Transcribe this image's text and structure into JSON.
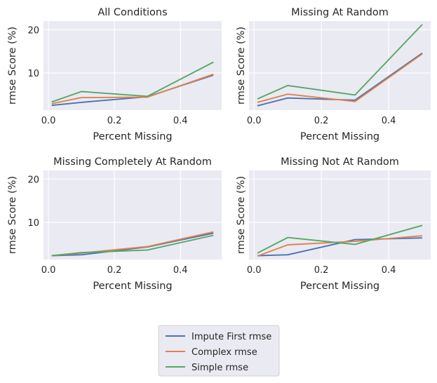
{
  "chart_data": [
    {
      "type": "line",
      "title": "All Conditions",
      "xlabel": "Percent Missing",
      "ylabel": "rmse Score (%)",
      "x": [
        0.01,
        0.1,
        0.3,
        0.5
      ],
      "xlim": [
        -0.015,
        0.525
      ],
      "ylim": [
        1.4,
        22.0
      ],
      "xticks": [
        "0.0",
        "0.2",
        "0.4"
      ],
      "yticks": [
        "10",
        "20"
      ],
      "series": [
        {
          "name": "Impute First rmse",
          "values": [
            2.5,
            3.2,
            4.5,
            9.5
          ]
        },
        {
          "name": "Complex rmse",
          "values": [
            2.9,
            4.3,
            4.4,
            9.7
          ]
        },
        {
          "name": "Simple rmse",
          "values": [
            3.3,
            5.7,
            4.6,
            12.5
          ]
        }
      ]
    },
    {
      "type": "line",
      "title": "Missing At Random",
      "xlabel": "Percent Missing",
      "ylabel": "rmse Score (%)",
      "x": [
        0.01,
        0.1,
        0.3,
        0.5
      ],
      "xlim": [
        -0.015,
        0.525
      ],
      "ylim": [
        1.4,
        22.0
      ],
      "xticks": [
        "0.0",
        "0.2",
        "0.4"
      ],
      "yticks": [
        "",
        ""
      ],
      "series": [
        {
          "name": "Impute First rmse",
          "values": [
            2.4,
            4.2,
            3.7,
            14.6
          ]
        },
        {
          "name": "Complex rmse",
          "values": [
            3.2,
            5.1,
            3.4,
            14.4
          ]
        },
        {
          "name": "Simple rmse",
          "values": [
            4.0,
            7.1,
            4.9,
            21.2
          ]
        }
      ]
    },
    {
      "type": "line",
      "title": "Missing Completely At Random",
      "xlabel": "Percent Missing",
      "ylabel": "rmse Score (%)",
      "x": [
        0.01,
        0.1,
        0.3,
        0.5
      ],
      "xlim": [
        -0.015,
        0.525
      ],
      "ylim": [
        1.4,
        22.0
      ],
      "xticks": [
        "0.0",
        "0.2",
        "0.4"
      ],
      "yticks": [
        "10",
        "20"
      ],
      "series": [
        {
          "name": "Impute First rmse",
          "values": [
            2.3,
            2.5,
            4.3,
            7.5
          ]
        },
        {
          "name": "Complex rmse",
          "values": [
            2.3,
            2.9,
            4.4,
            7.8
          ]
        },
        {
          "name": "Simple rmse",
          "values": [
            2.3,
            3.0,
            3.6,
            7.0
          ]
        }
      ]
    },
    {
      "type": "line",
      "title": "Missing Not At Random",
      "xlabel": "Percent Missing",
      "ylabel": "rmse Score (%)",
      "x": [
        0.01,
        0.1,
        0.3,
        0.5
      ],
      "xlim": [
        -0.015,
        0.525
      ],
      "ylim": [
        1.4,
        22.0
      ],
      "xticks": [
        "0.0",
        "0.2",
        "0.4"
      ],
      "yticks": [
        "",
        ""
      ],
      "series": [
        {
          "name": "Impute First rmse",
          "values": [
            2.3,
            2.5,
            6.0,
            6.4
          ]
        },
        {
          "name": "Complex rmse",
          "values": [
            2.2,
            4.8,
            5.6,
            6.9
          ]
        },
        {
          "name": "Simple rmse",
          "values": [
            2.9,
            6.5,
            4.9,
            9.3
          ]
        }
      ]
    }
  ],
  "legend": {
    "placement": "bottom-center",
    "items": [
      "Impute First rmse",
      "Complex rmse",
      "Simple rmse"
    ]
  },
  "colors": {
    "Impute First rmse": "#4c72b0",
    "Complex rmse": "#dd8452",
    "Simple rmse": "#55a868",
    "axes_bg": "#eaeaf2",
    "grid": "#ffffff"
  }
}
